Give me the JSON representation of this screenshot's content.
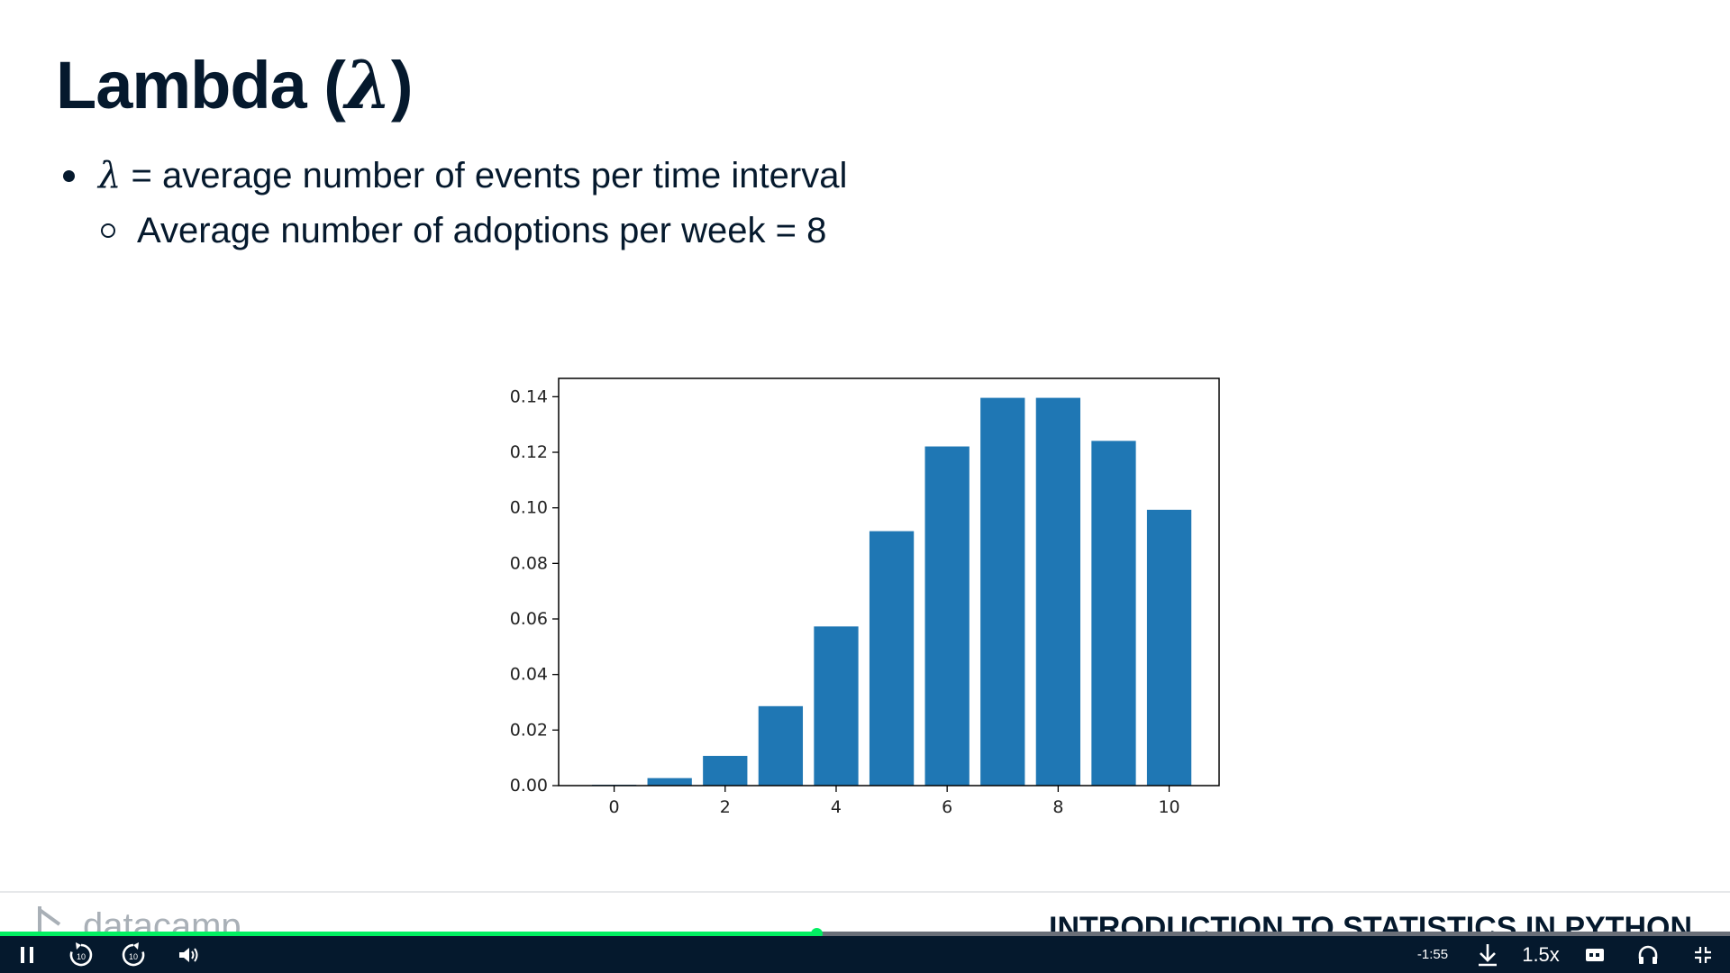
{
  "slide": {
    "title_text": "Lambda (",
    "title_symbol": "λ",
    "title_close": ")",
    "bullets": [
      {
        "symbol": "λ",
        "text": " = average number of events per time interval"
      },
      {
        "text": "Average number of adoptions per week = 8"
      }
    ]
  },
  "chart_data": {
    "type": "bar",
    "title": "",
    "xlabel": "",
    "ylabel": "",
    "categories": [
      0,
      1,
      2,
      3,
      4,
      5,
      6,
      7,
      8,
      9,
      10
    ],
    "values": [
      0.0003,
      0.0027,
      0.0107,
      0.0286,
      0.0573,
      0.0916,
      0.1221,
      0.1396,
      0.1396,
      0.1241,
      0.0993
    ],
    "xticks": [
      0,
      2,
      4,
      6,
      8,
      10
    ],
    "yticks": [
      "0.00",
      "0.02",
      "0.04",
      "0.06",
      "0.08",
      "0.10",
      "0.12",
      "0.14"
    ],
    "ytick_values": [
      0,
      0.02,
      0.04,
      0.06,
      0.08,
      0.1,
      0.12,
      0.14
    ],
    "xlim": [
      -1,
      10.9
    ],
    "ylim": [
      0,
      0.1466
    ],
    "bar_color": "#1f77b4",
    "grid": false
  },
  "footer": {
    "logo_text": "datacamp",
    "course_title": "INTRODUCTION TO STATISTICS IN PYTHON"
  },
  "player": {
    "progress": 0.472,
    "time_remaining": "-1:55",
    "speed": "1.5x",
    "rewind_label": "10",
    "forward_label": "10",
    "accent_color": "#03ef62",
    "bar_color": "#05192d",
    "icons": [
      "pause-icon",
      "rewind-10-icon",
      "forward-10-icon",
      "volume-icon",
      "download-icon",
      "captions-icon",
      "audio-icon",
      "exit-fullscreen-icon"
    ]
  }
}
